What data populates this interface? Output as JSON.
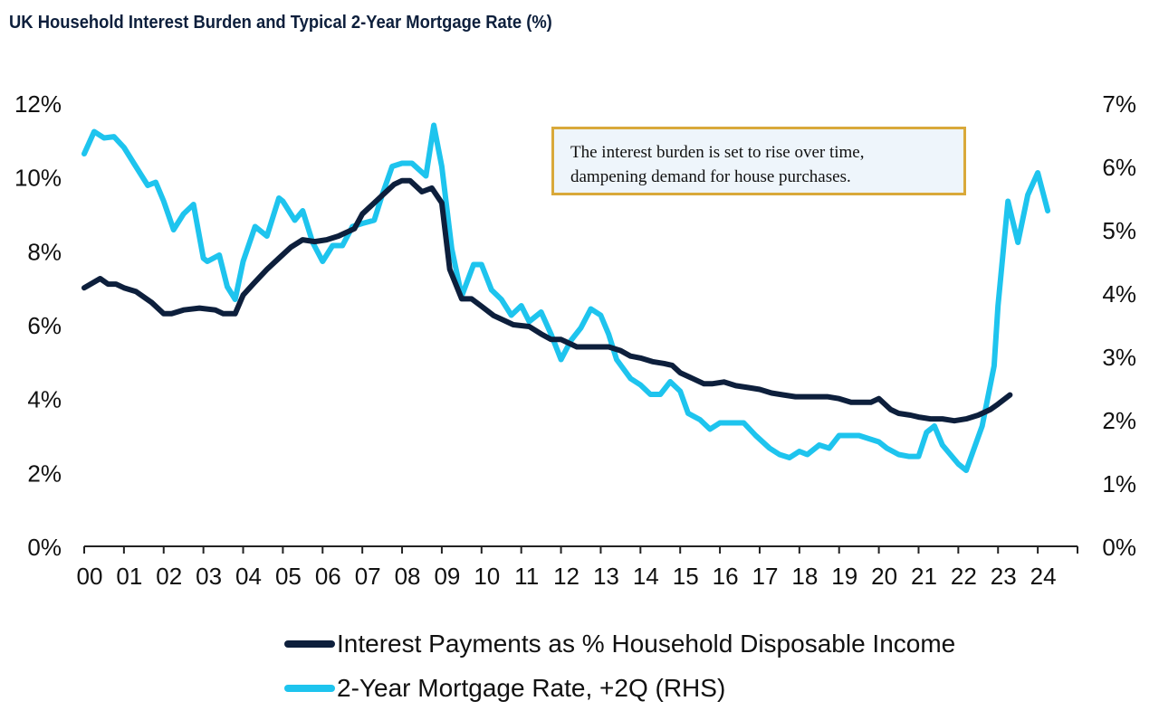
{
  "chart_data": {
    "type": "line",
    "title": "UK Household Interest Burden and Typical 2-Year Mortgage Rate (%)",
    "annotation": [
      "The interest burden is set to rise over time,",
      "dampening demand for house purchases."
    ],
    "x_axis": {
      "range": [
        2000.0,
        2025.0
      ],
      "tick_values": [
        2000,
        2001,
        2002,
        2003,
        2004,
        2005,
        2006,
        2007,
        2008,
        2009,
        2010,
        2011,
        2012,
        2013,
        2014,
        2015,
        2016,
        2017,
        2018,
        2019,
        2020,
        2021,
        2022,
        2023,
        2024
      ],
      "tick_labels": [
        "00",
        "01",
        "02",
        "03",
        "04",
        "05",
        "06",
        "07",
        "08",
        "09",
        "10",
        "11",
        "12",
        "13",
        "14",
        "15",
        "16",
        "17",
        "18",
        "19",
        "20",
        "21",
        "22",
        "23",
        "24"
      ]
    },
    "y_left": {
      "range": [
        0,
        12
      ],
      "tick_values": [
        0,
        2,
        4,
        6,
        8,
        10,
        12
      ],
      "tick_labels": [
        "0%",
        "2%",
        "4%",
        "6%",
        "8%",
        "10%",
        "12%"
      ]
    },
    "y_right": {
      "range": [
        0,
        7
      ],
      "tick_values": [
        0,
        1,
        2,
        3,
        4,
        5,
        6,
        7
      ],
      "tick_labels": [
        "0%",
        "1%",
        "2%",
        "3%",
        "4%",
        "5%",
        "6%",
        "7%"
      ]
    },
    "legend": {
      "position": "bottom"
    },
    "series": [
      {
        "name": "Interest Payments as % Household Disposable Income",
        "axis": "left",
        "color": "#0d1f3c",
        "x": [
          2000.0,
          2000.4,
          2000.6,
          2000.8,
          2001.0,
          2001.3,
          2001.7,
          2002.0,
          2002.2,
          2002.5,
          2002.9,
          2003.3,
          2003.5,
          2003.8,
          2004.0,
          2004.25,
          2004.6,
          2004.9,
          2005.2,
          2005.5,
          2005.8,
          2006.1,
          2006.4,
          2006.8,
          2007.0,
          2007.3,
          2007.5,
          2007.8,
          2008.0,
          2008.2,
          2008.5,
          2008.75,
          2009.0,
          2009.2,
          2009.5,
          2009.75,
          2010.0,
          2010.3,
          2010.6,
          2010.8,
          2011.2,
          2011.5,
          2011.75,
          2012.0,
          2012.4,
          2012.8,
          2013.2,
          2013.5,
          2013.75,
          2014.0,
          2014.3,
          2014.6,
          2014.8,
          2015.0,
          2015.3,
          2015.6,
          2015.8,
          2016.1,
          2016.4,
          2016.7,
          2017.0,
          2017.3,
          2017.6,
          2017.9,
          2018.3,
          2018.7,
          2019.0,
          2019.3,
          2019.6,
          2019.8,
          2020.0,
          2020.3,
          2020.5,
          2020.8,
          2021.0,
          2021.3,
          2021.6,
          2021.9,
          2022.2,
          2022.5,
          2022.8,
          2023.0,
          2023.3
        ],
        "y": [
          7.0,
          7.25,
          7.1,
          7.1,
          7.0,
          6.9,
          6.6,
          6.3,
          6.3,
          6.4,
          6.45,
          6.4,
          6.3,
          6.3,
          6.8,
          7.1,
          7.5,
          7.8,
          8.1,
          8.3,
          8.25,
          8.3,
          8.4,
          8.6,
          9.0,
          9.3,
          9.5,
          9.8,
          9.9,
          9.9,
          9.6,
          9.7,
          9.3,
          7.5,
          6.7,
          6.7,
          6.5,
          6.25,
          6.1,
          6.0,
          5.95,
          5.75,
          5.6,
          5.6,
          5.4,
          5.4,
          5.4,
          5.3,
          5.15,
          5.1,
          5.0,
          4.95,
          4.9,
          4.7,
          4.55,
          4.4,
          4.4,
          4.45,
          4.35,
          4.3,
          4.25,
          4.15,
          4.1,
          4.05,
          4.05,
          4.05,
          4.0,
          3.9,
          3.9,
          3.9,
          4.0,
          3.7,
          3.6,
          3.55,
          3.5,
          3.45,
          3.45,
          3.4,
          3.45,
          3.55,
          3.7,
          3.85,
          4.1
        ]
      },
      {
        "name": "2-Year Mortgage Rate, +2Q (RHS)",
        "axis": "right",
        "color": "#1ec4ee",
        "x": [
          2000.0,
          2000.25,
          2000.5,
          2000.75,
          2001.0,
          2001.3,
          2001.6,
          2001.8,
          2002.0,
          2002.25,
          2002.5,
          2002.75,
          2003.0,
          2003.1,
          2003.4,
          2003.6,
          2003.8,
          2004.0,
          2004.3,
          2004.6,
          2004.9,
          2005.0,
          2005.3,
          2005.5,
          2005.75,
          2006.0,
          2006.25,
          2006.5,
          2006.75,
          2007.0,
          2007.3,
          2007.5,
          2007.75,
          2008.0,
          2008.25,
          2008.6,
          2008.8,
          2009.0,
          2009.25,
          2009.5,
          2009.8,
          2010.0,
          2010.25,
          2010.5,
          2010.75,
          2011.0,
          2011.2,
          2011.5,
          2011.75,
          2012.0,
          2012.25,
          2012.5,
          2012.75,
          2013.0,
          2013.2,
          2013.4,
          2013.75,
          2014.0,
          2014.25,
          2014.5,
          2014.75,
          2015.0,
          2015.2,
          2015.5,
          2015.75,
          2016.0,
          2016.3,
          2016.6,
          2016.9,
          2017.25,
          2017.5,
          2017.75,
          2018.0,
          2018.2,
          2018.5,
          2018.75,
          2019.0,
          2019.2,
          2019.5,
          2019.75,
          2020.0,
          2020.2,
          2020.5,
          2020.75,
          2021.0,
          2021.2,
          2021.4,
          2021.6,
          2021.8,
          2022.0,
          2022.2,
          2022.4,
          2022.6,
          2022.9,
          2023.0,
          2023.25,
          2023.5,
          2023.75,
          2024.0,
          2024.25
        ],
        "y": [
          6.2,
          6.55,
          6.45,
          6.47,
          6.3,
          6.0,
          5.7,
          5.75,
          5.45,
          5.0,
          5.25,
          5.4,
          4.55,
          4.5,
          4.6,
          4.1,
          3.9,
          4.5,
          5.05,
          4.9,
          5.5,
          5.45,
          5.15,
          5.3,
          4.8,
          4.5,
          4.75,
          4.75,
          5.05,
          5.1,
          5.15,
          5.55,
          6.0,
          6.05,
          6.05,
          5.85,
          6.65,
          6.0,
          4.7,
          3.95,
          4.45,
          4.45,
          4.05,
          3.9,
          3.65,
          3.8,
          3.55,
          3.7,
          3.35,
          2.95,
          3.25,
          3.45,
          3.75,
          3.65,
          3.35,
          2.95,
          2.65,
          2.55,
          2.4,
          2.4,
          2.6,
          2.45,
          2.1,
          2.0,
          1.85,
          1.95,
          1.95,
          1.95,
          1.75,
          1.55,
          1.45,
          1.4,
          1.5,
          1.45,
          1.6,
          1.55,
          1.75,
          1.75,
          1.75,
          1.7,
          1.65,
          1.55,
          1.45,
          1.42,
          1.42,
          1.8,
          1.9,
          1.6,
          1.45,
          1.3,
          1.2,
          1.55,
          1.9,
          2.85,
          3.8,
          5.45,
          4.8,
          5.55,
          5.9,
          5.3
        ]
      }
    ]
  }
}
